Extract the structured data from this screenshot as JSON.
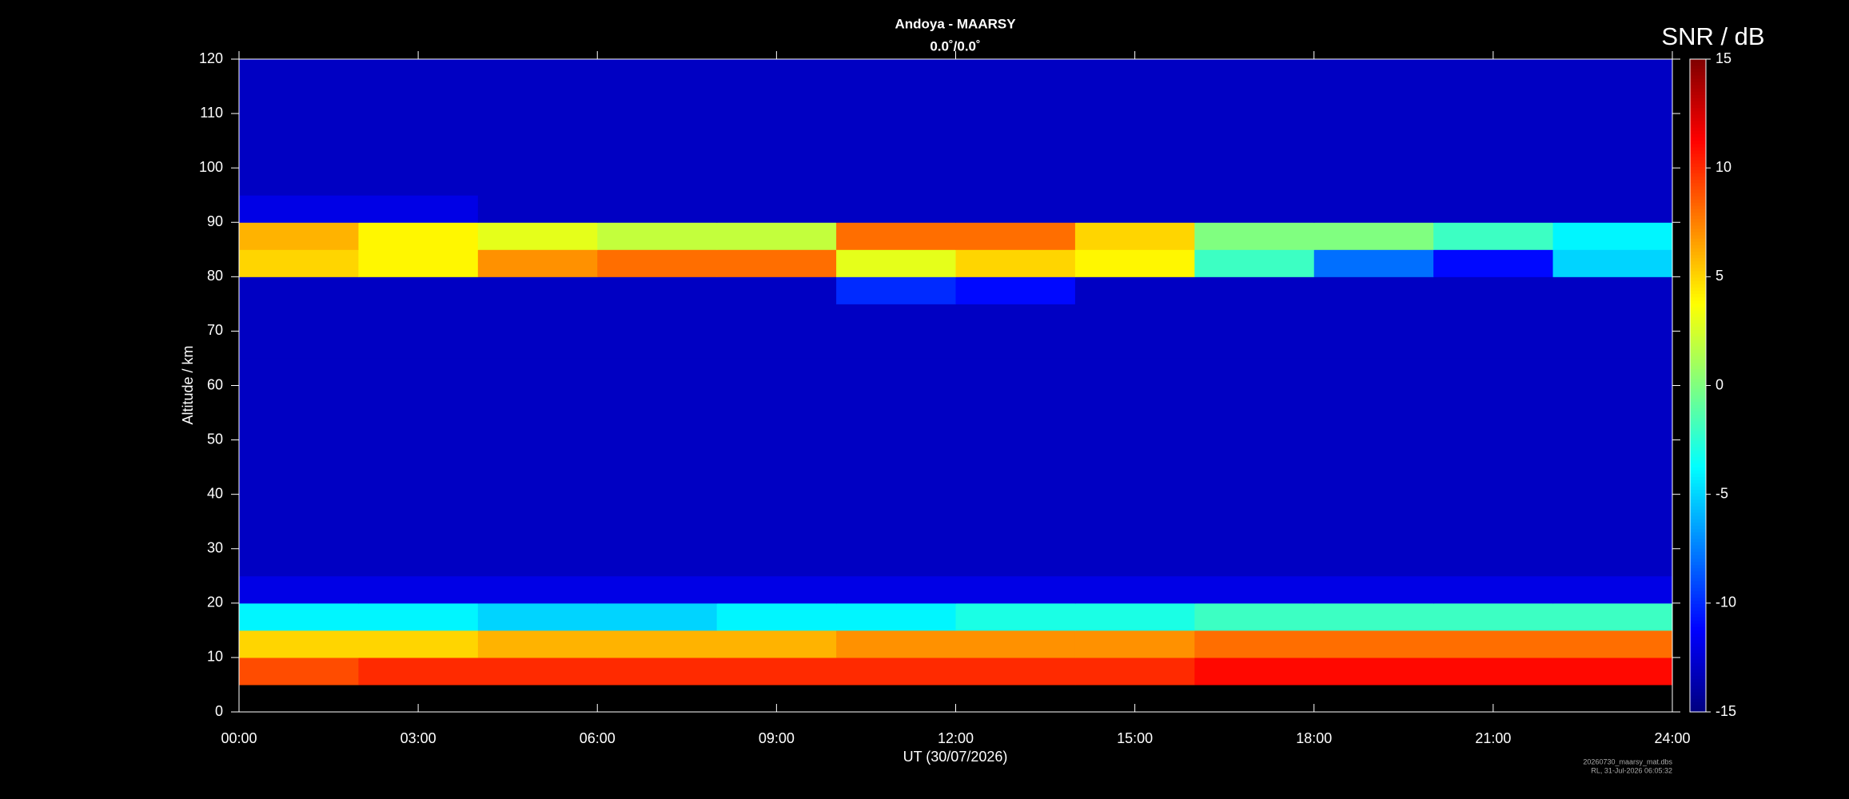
{
  "chart_data": {
    "type": "heatmap",
    "title": "Andoya - MAARSY",
    "subtitle": "0.0˚/0.0˚",
    "xlabel": "UT (30/07/2026)",
    "ylabel": "Altitude / km",
    "colorbar_label": "SNR / dB",
    "colormap": "jet",
    "footer": [
      "20260730_maarsy_mat.dbs",
      "RL, 31-Jul-2026 06:05:32"
    ],
    "xlim": [
      0,
      24
    ],
    "xticks": [
      {
        "value": 0,
        "label": "00:00"
      },
      {
        "value": 3,
        "label": "03:00"
      },
      {
        "value": 6,
        "label": "06:00"
      },
      {
        "value": 9,
        "label": "09:00"
      },
      {
        "value": 12,
        "label": "12:00"
      },
      {
        "value": 15,
        "label": "15:00"
      },
      {
        "value": 18,
        "label": "18:00"
      },
      {
        "value": 21,
        "label": "21:00"
      },
      {
        "value": 24,
        "label": "24:00"
      }
    ],
    "ylim": [
      0,
      120
    ],
    "yticks": [
      0,
      10,
      20,
      30,
      40,
      50,
      60,
      70,
      80,
      90,
      100,
      110,
      120
    ],
    "clim": [
      -15,
      15
    ],
    "cticks": [
      -15,
      -10,
      -5,
      0,
      5,
      10,
      15
    ],
    "x_edges": [
      0,
      2,
      4,
      6,
      8,
      10,
      12,
      14,
      16,
      18,
      20,
      22,
      24
    ],
    "y_edges": [
      5,
      10,
      15,
      20,
      25,
      30,
      35,
      40,
      45,
      50,
      55,
      60,
      65,
      70,
      75,
      80,
      85,
      90,
      95,
      100,
      105,
      110,
      115,
      120
    ],
    "z": [
      [
        9,
        10,
        10,
        10,
        10,
        10,
        10,
        10,
        11,
        11,
        11,
        11
      ],
      [
        5,
        5,
        6,
        6,
        6,
        7,
        7,
        7,
        8,
        8,
        8,
        8
      ],
      [
        -4,
        -4,
        -5,
        -5,
        -4,
        -4,
        -3,
        -3,
        -2,
        -2,
        -2,
        -2
      ],
      [
        -12,
        -12,
        -12,
        -12,
        -12,
        -12,
        -12,
        -12,
        -12,
        -12,
        -12,
        -12
      ],
      [
        -13,
        -13,
        -13,
        -13,
        -13,
        -13,
        -13,
        -13,
        -13,
        -13,
        -13,
        -13
      ],
      [
        -13,
        -13,
        -13,
        -13,
        -13,
        -13,
        -13,
        -13,
        -13,
        -13,
        -13,
        -13
      ],
      [
        -13,
        -13,
        -13,
        -13,
        -13,
        -13,
        -13,
        -13,
        -13,
        -13,
        -13,
        -13
      ],
      [
        -13,
        -13,
        -13,
        -13,
        -13,
        -13,
        -13,
        -13,
        -13,
        -13,
        -13,
        -13
      ],
      [
        -13,
        -13,
        -13,
        -13,
        -13,
        -13,
        -13,
        -13,
        -13,
        -13,
        -13,
        -13
      ],
      [
        -13,
        -13,
        -13,
        -13,
        -13,
        -13,
        -13,
        -13,
        -13,
        -13,
        -13,
        -13
      ],
      [
        -13,
        -13,
        -13,
        -13,
        -13,
        -13,
        -13,
        -13,
        -13,
        -13,
        -13,
        -13
      ],
      [
        -13,
        -13,
        -13,
        -13,
        -13,
        -13,
        -13,
        -13,
        -13,
        -13,
        -13,
        -13
      ],
      [
        -13,
        -13,
        -13,
        -13,
        -13,
        -13,
        -13,
        -13,
        -13,
        -13,
        -13,
        -13
      ],
      [
        -13,
        -13,
        -13,
        -13,
        -13,
        -13,
        -13,
        -13,
        -13,
        -13,
        -13,
        -13
      ],
      [
        -13,
        -13,
        -13,
        -13,
        -13,
        -10,
        -11,
        -13,
        -13,
        -13,
        -13,
        -13
      ],
      [
        5,
        4,
        7,
        8,
        8,
        3,
        5,
        4,
        -2,
        -8,
        -11,
        -5
      ],
      [
        6,
        4,
        3,
        2,
        2,
        8,
        8,
        5,
        0,
        0,
        -2,
        -4
      ],
      [
        -12,
        -12,
        -13,
        -13,
        -13,
        -13,
        -13,
        -13,
        -13,
        -13,
        -13,
        -13
      ],
      [
        -13,
        -13,
        -13,
        -13,
        -13,
        -13,
        -13,
        -13,
        -13,
        -13,
        -13,
        -13
      ],
      [
        -13,
        -13,
        -13,
        -13,
        -13,
        -13,
        -13,
        -13,
        -13,
        -13,
        -13,
        -13
      ],
      [
        -13,
        -13,
        -13,
        -13,
        -13,
        -13,
        -13,
        -13,
        -13,
        -13,
        -13,
        -13
      ],
      [
        -13,
        -13,
        -13,
        -13,
        -13,
        -13,
        -13,
        -13,
        -13,
        -13,
        -13,
        -13
      ],
      [
        -13,
        -13,
        -13,
        -13,
        -13,
        -13,
        -13,
        -13,
        -13,
        -13,
        -13,
        -13
      ]
    ]
  }
}
